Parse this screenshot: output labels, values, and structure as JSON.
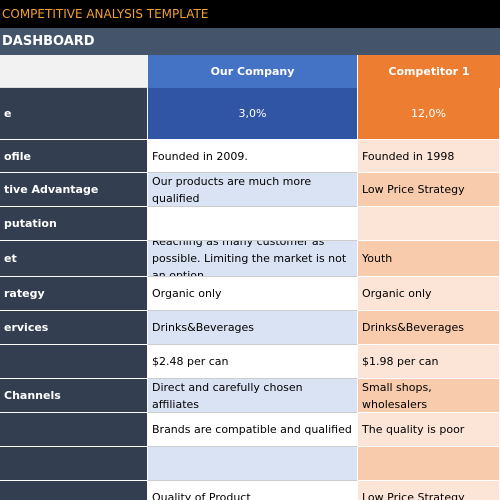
{
  "header": {
    "title": "COMPETITIVE ANALYSIS TEMPLATE",
    "subtitle": "DASHBOARD"
  },
  "table": {
    "columns": [
      null,
      "Our Company",
      "Competitor 1"
    ],
    "rows": [
      [
        "e",
        "3,0%",
        "12,0%"
      ],
      [
        "ofile",
        "Founded in 2009.",
        "Founded in 1998"
      ],
      [
        "tive Advantage",
        "Our products are much more qualified",
        "Low Price Strategy"
      ],
      [
        "putation",
        null,
        null
      ],
      [
        "et",
        "Reaching as many customer as possible. Limiting the market is not an option",
        "Youth"
      ],
      [
        "rategy",
        "Organic only",
        "Organic only"
      ],
      [
        "ervices",
        "Drinks&Beverages",
        "Drinks&Beverages"
      ],
      [
        null,
        "$2.48 per can",
        "$1.98 per can"
      ],
      [
        "Channels",
        "Direct and carefully chosen affiliates",
        "Small shops, wholesalers"
      ],
      [
        null,
        "Brands are compatible and qualified",
        "The quality is poor"
      ],
      [
        null,
        null,
        null
      ],
      [
        null,
        "Quality of Product",
        "Low Price Strategy"
      ]
    ]
  }
}
